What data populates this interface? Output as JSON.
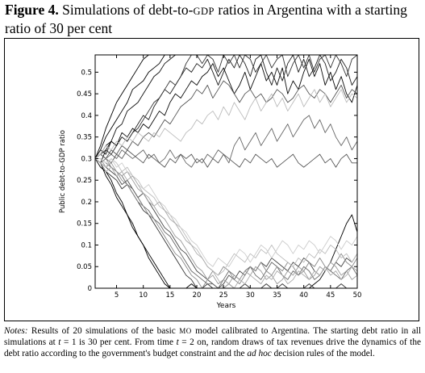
{
  "figure": {
    "label": "Figure 4.",
    "title_part1": " Simulations of debt-to-",
    "title_sc": "GDP",
    "title_part2": " ratios in Argentina with a starting ratio of 30 per cent"
  },
  "notes": {
    "label": "Notes:",
    "text1": " Results of 20 simulations of the basic ",
    "sc1": "MO",
    "text2": " model calibrated to Argentina. The starting debt ratio in all simulations at ",
    "t1": "t",
    "text3": " = 1 is 30 per cent. From time ",
    "t2": "t",
    "text4": " = 2 on, random draws of tax revenues drive the dynamics of the debt ratio according to the government's budget constraint and the ",
    "adhoc": "ad hoc",
    "text5": " decision rules of the model."
  },
  "chart_data": {
    "type": "line",
    "xlabel": "Years",
    "ylabel": "Public debt-to-GDP ratio",
    "xlim": [
      1,
      50
    ],
    "ylim": [
      0,
      0.54
    ],
    "xticks": [
      5,
      10,
      15,
      20,
      25,
      30,
      35,
      40,
      45,
      50
    ],
    "yticks": [
      0,
      0.05,
      0.1,
      0.15,
      0.2,
      0.25,
      0.3,
      0.35,
      0.4,
      0.45,
      0.5
    ],
    "grid": false,
    "legend": "none",
    "series": [
      {
        "color": "#000000",
        "values": [
          0.3,
          0.33,
          0.37,
          0.4,
          0.43,
          0.45,
          0.47,
          0.49,
          0.51,
          0.53,
          0.54,
          0.54,
          0.54,
          0.54,
          0.54,
          0.54,
          0.54,
          0.54,
          0.54,
          0.54,
          0.54,
          0.54,
          0.54,
          0.54,
          0.54,
          0.54,
          0.54,
          0.54,
          0.54,
          0.54,
          0.54,
          0.54,
          0.54,
          0.54,
          0.54,
          0.54,
          0.54,
          0.54,
          0.54,
          0.54,
          0.54,
          0.54,
          0.54,
          0.54,
          0.54,
          0.54,
          0.54,
          0.54,
          0.54,
          0.54
        ]
      },
      {
        "color": "#000000",
        "values": [
          0.3,
          0.32,
          0.35,
          0.37,
          0.39,
          0.41,
          0.43,
          0.46,
          0.47,
          0.48,
          0.5,
          0.51,
          0.52,
          0.54,
          0.54,
          0.54,
          0.54,
          0.54,
          0.54,
          0.54,
          0.54,
          0.54,
          0.54,
          0.54,
          0.54,
          0.54,
          0.54,
          0.54,
          0.54,
          0.54,
          0.54,
          0.54,
          0.54,
          0.54,
          0.54,
          0.54,
          0.54,
          0.54,
          0.54,
          0.54,
          0.54,
          0.54,
          0.54,
          0.54,
          0.54,
          0.54,
          0.54,
          0.54,
          0.54,
          0.54
        ]
      },
      {
        "color": "#111111",
        "values": [
          0.3,
          0.31,
          0.33,
          0.34,
          0.37,
          0.38,
          0.41,
          0.42,
          0.43,
          0.45,
          0.47,
          0.49,
          0.5,
          0.52,
          0.53,
          0.54,
          0.54,
          0.54,
          0.54,
          0.54,
          0.54,
          0.54,
          0.54,
          0.54,
          0.54,
          0.54,
          0.54,
          0.54,
          0.54,
          0.54,
          0.54,
          0.54,
          0.54,
          0.54,
          0.54,
          0.54,
          0.54,
          0.54,
          0.54,
          0.54,
          0.54,
          0.54,
          0.54,
          0.54,
          0.54,
          0.54,
          0.54,
          0.54,
          0.54,
          0.54
        ]
      },
      {
        "color": "#1e1e1e",
        "values": [
          0.3,
          0.32,
          0.31,
          0.34,
          0.33,
          0.35,
          0.34,
          0.36,
          0.38,
          0.4,
          0.39,
          0.42,
          0.44,
          0.46,
          0.45,
          0.47,
          0.49,
          0.51,
          0.5,
          0.52,
          0.51,
          0.53,
          0.5,
          0.47,
          0.5,
          0.53,
          0.51,
          0.54,
          0.52,
          0.49,
          0.53,
          0.54,
          0.5,
          0.47,
          0.51,
          0.48,
          0.52,
          0.54,
          0.5,
          0.53,
          0.49,
          0.51,
          0.54,
          0.52,
          0.48,
          0.5,
          0.53,
          0.51,
          0.47,
          0.49
        ]
      },
      {
        "color": "#333333",
        "values": [
          0.3,
          0.31,
          0.32,
          0.31,
          0.33,
          0.35,
          0.34,
          0.36,
          0.37,
          0.39,
          0.41,
          0.43,
          0.44,
          0.46,
          0.48,
          0.47,
          0.49,
          0.52,
          0.54,
          0.54,
          0.52,
          0.54,
          0.53,
          0.5,
          0.54,
          0.52,
          0.54,
          0.51,
          0.54,
          0.53,
          0.5,
          0.52,
          0.54,
          0.51,
          0.53,
          0.54,
          0.49,
          0.52,
          0.54,
          0.51,
          0.54,
          0.5,
          0.53,
          0.54,
          0.51,
          0.54,
          0.52,
          0.49,
          0.53,
          0.54
        ]
      },
      {
        "color": "#0a0a0a",
        "values": [
          0.3,
          0.29,
          0.32,
          0.34,
          0.33,
          0.36,
          0.35,
          0.37,
          0.36,
          0.38,
          0.37,
          0.39,
          0.41,
          0.4,
          0.43,
          0.45,
          0.44,
          0.46,
          0.48,
          0.47,
          0.49,
          0.5,
          0.52,
          0.49,
          0.51,
          0.48,
          0.45,
          0.47,
          0.5,
          0.46,
          0.49,
          0.52,
          0.48,
          0.5,
          0.47,
          0.51,
          0.45,
          0.48,
          0.46,
          0.5,
          0.53,
          0.49,
          0.52,
          0.47,
          0.5,
          0.46,
          0.49,
          0.45,
          0.43,
          0.47
        ]
      },
      {
        "color": "#555555",
        "values": [
          0.3,
          0.31,
          0.3,
          0.32,
          0.31,
          0.33,
          0.32,
          0.34,
          0.33,
          0.35,
          0.36,
          0.35,
          0.37,
          0.39,
          0.38,
          0.4,
          0.42,
          0.43,
          0.44,
          0.46,
          0.45,
          0.47,
          0.44,
          0.46,
          0.48,
          0.47,
          0.45,
          0.43,
          0.45,
          0.46,
          0.44,
          0.45,
          0.43,
          0.44,
          0.46,
          0.45,
          0.43,
          0.44,
          0.46,
          0.47,
          0.45,
          0.44,
          0.46,
          0.45,
          0.43,
          0.45,
          0.47,
          0.44,
          0.46,
          0.45
        ]
      },
      {
        "color": "#666666",
        "values": [
          0.3,
          0.29,
          0.3,
          0.31,
          0.3,
          0.32,
          0.31,
          0.3,
          0.31,
          0.32,
          0.3,
          0.31,
          0.29,
          0.3,
          0.32,
          0.3,
          0.31,
          0.29,
          0.28,
          0.3,
          0.29,
          0.31,
          0.3,
          0.32,
          0.31,
          0.29,
          0.33,
          0.35,
          0.32,
          0.34,
          0.36,
          0.33,
          0.35,
          0.37,
          0.34,
          0.36,
          0.38,
          0.35,
          0.37,
          0.39,
          0.4,
          0.37,
          0.39,
          0.36,
          0.38,
          0.35,
          0.33,
          0.35,
          0.32,
          0.34
        ]
      },
      {
        "color": "#555555",
        "values": [
          0.3,
          0.31,
          0.3,
          0.29,
          0.31,
          0.3,
          0.32,
          0.31,
          0.3,
          0.29,
          0.31,
          0.3,
          0.29,
          0.28,
          0.3,
          0.29,
          0.31,
          0.3,
          0.31,
          0.29,
          0.3,
          0.28,
          0.3,
          0.29,
          0.31,
          0.3,
          0.29,
          0.28,
          0.3,
          0.29,
          0.31,
          0.3,
          0.29,
          0.3,
          0.28,
          0.29,
          0.3,
          0.31,
          0.29,
          0.28,
          0.29,
          0.3,
          0.31,
          0.29,
          0.3,
          0.28,
          0.3,
          0.31,
          0.29,
          0.29
        ]
      },
      {
        "color": "#bbbbbb",
        "values": [
          0.3,
          0.31,
          0.33,
          0.32,
          0.34,
          0.33,
          0.35,
          0.34,
          0.36,
          0.35,
          0.34,
          0.36,
          0.35,
          0.37,
          0.36,
          0.35,
          0.34,
          0.36,
          0.37,
          0.39,
          0.38,
          0.4,
          0.41,
          0.39,
          0.42,
          0.4,
          0.43,
          0.41,
          0.39,
          0.42,
          0.44,
          0.41,
          0.43,
          0.45,
          0.42,
          0.44,
          0.41,
          0.43,
          0.45,
          0.42,
          0.44,
          0.46,
          0.43,
          0.45,
          0.42,
          0.44,
          0.46,
          0.43,
          0.45,
          0.44
        ]
      },
      {
        "color": "#000000",
        "values": [
          0.3,
          0.29,
          0.26,
          0.24,
          0.21,
          0.19,
          0.17,
          0.14,
          0.12,
          0.1,
          0.08,
          0.06,
          0.04,
          0.02,
          0.0,
          0.0,
          0.0,
          0.0,
          0.0,
          0.0,
          0.0,
          0.0,
          0.0,
          0.0,
          0.0,
          0.0,
          0.0,
          0.0,
          0.0,
          0.0,
          0.0,
          0.0,
          0.0,
          0.0,
          0.0,
          0.0,
          0.0,
          0.0,
          0.0,
          0.0,
          0.0,
          0.0,
          0.0,
          0.0,
          0.0,
          0.0,
          0.0,
          0.0,
          0.0,
          0.0
        ]
      },
      {
        "color": "#000000",
        "values": [
          0.3,
          0.28,
          0.27,
          0.25,
          0.22,
          0.2,
          0.17,
          0.15,
          0.12,
          0.1,
          0.07,
          0.05,
          0.03,
          0.01,
          0.0,
          0.0,
          0.0,
          0.0,
          0.01,
          0.0,
          0.0,
          0.0,
          0.0,
          0.0,
          0.0,
          0.0,
          0.0,
          0.0,
          0.0,
          0.0,
          0.0,
          0.0,
          0.0,
          0.0,
          0.0,
          0.0,
          0.0,
          0.0,
          0.0,
          0.0,
          0.0,
          0.01,
          0.02,
          0.04,
          0.06,
          0.09,
          0.12,
          0.15,
          0.17,
          0.13
        ]
      },
      {
        "color": "#333333",
        "values": [
          0.3,
          0.29,
          0.27,
          0.26,
          0.25,
          0.23,
          0.24,
          0.22,
          0.2,
          0.18,
          0.17,
          0.15,
          0.13,
          0.11,
          0.09,
          0.07,
          0.05,
          0.03,
          0.02,
          0.0,
          0.0,
          0.01,
          0.0,
          0.0,
          0.0,
          0.01,
          0.0,
          0.0,
          0.01,
          0.0,
          0.0,
          0.0,
          0.01,
          0.0,
          0.0,
          0.01,
          0.0,
          0.0,
          0.0,
          0.0,
          0.01,
          0.0,
          0.0,
          0.0,
          0.0,
          0.0,
          0.01,
          0.0,
          0.0,
          0.0
        ]
      },
      {
        "color": "#444444",
        "values": [
          0.3,
          0.29,
          0.28,
          0.27,
          0.26,
          0.24,
          0.25,
          0.23,
          0.21,
          0.22,
          0.2,
          0.18,
          0.16,
          0.14,
          0.13,
          0.11,
          0.09,
          0.08,
          0.06,
          0.04,
          0.03,
          0.02,
          0.01,
          0.0,
          0.01,
          0.03,
          0.02,
          0.04,
          0.03,
          0.05,
          0.04,
          0.06,
          0.05,
          0.07,
          0.06,
          0.05,
          0.04,
          0.06,
          0.05,
          0.07,
          0.06,
          0.04,
          0.03,
          0.05,
          0.04,
          0.06,
          0.05,
          0.07,
          0.06,
          0.08
        ]
      },
      {
        "color": "#666666",
        "values": [
          0.3,
          0.3,
          0.29,
          0.28,
          0.27,
          0.26,
          0.24,
          0.23,
          0.21,
          0.19,
          0.18,
          0.16,
          0.15,
          0.13,
          0.12,
          0.1,
          0.08,
          0.06,
          0.04,
          0.03,
          0.02,
          0.01,
          0.01,
          0.0,
          0.02,
          0.04,
          0.03,
          0.02,
          0.04,
          0.05,
          0.03,
          0.02,
          0.04,
          0.06,
          0.05,
          0.03,
          0.02,
          0.04,
          0.03,
          0.05,
          0.04,
          0.02,
          0.03,
          0.05,
          0.04,
          0.03,
          0.02,
          0.04,
          0.05,
          0.03
        ]
      },
      {
        "color": "#888888",
        "values": [
          0.3,
          0.29,
          0.3,
          0.28,
          0.27,
          0.25,
          0.24,
          0.22,
          0.2,
          0.19,
          0.17,
          0.16,
          0.14,
          0.12,
          0.1,
          0.08,
          0.07,
          0.05,
          0.03,
          0.02,
          0.0,
          0.02,
          0.04,
          0.03,
          0.05,
          0.04,
          0.02,
          0.01,
          0.03,
          0.05,
          0.04,
          0.06,
          0.04,
          0.03,
          0.05,
          0.04,
          0.06,
          0.05,
          0.03,
          0.04,
          0.06,
          0.05,
          0.07,
          0.05,
          0.04,
          0.06,
          0.08,
          0.06,
          0.05,
          0.07
        ]
      },
      {
        "color": "#999999",
        "values": [
          0.3,
          0.3,
          0.28,
          0.29,
          0.27,
          0.26,
          0.27,
          0.25,
          0.23,
          0.22,
          0.2,
          0.19,
          0.17,
          0.16,
          0.14,
          0.12,
          0.11,
          0.09,
          0.07,
          0.05,
          0.04,
          0.02,
          0.03,
          0.01,
          0.02,
          0.01,
          0.03,
          0.02,
          0.04,
          0.03,
          0.05,
          0.04,
          0.02,
          0.03,
          0.01,
          0.02,
          0.04,
          0.03,
          0.05,
          0.04,
          0.02,
          0.03,
          0.05,
          0.04,
          0.06,
          0.05,
          0.03,
          0.04,
          0.02,
          0.03
        ]
      },
      {
        "color": "#bbbbbb",
        "values": [
          0.3,
          0.29,
          0.28,
          0.3,
          0.29,
          0.27,
          0.28,
          0.26,
          0.25,
          0.23,
          0.22,
          0.21,
          0.19,
          0.18,
          0.17,
          0.15,
          0.14,
          0.12,
          0.1,
          0.09,
          0.07,
          0.05,
          0.04,
          0.03,
          0.04,
          0.06,
          0.08,
          0.07,
          0.06,
          0.08,
          0.07,
          0.09,
          0.08,
          0.1,
          0.08,
          0.07,
          0.06,
          0.05,
          0.07,
          0.06,
          0.08,
          0.07,
          0.09,
          0.08,
          0.1,
          0.09,
          0.07,
          0.08,
          0.06,
          0.08
        ]
      },
      {
        "color": "#cccccc",
        "values": [
          0.3,
          0.3,
          0.29,
          0.3,
          0.28,
          0.29,
          0.27,
          0.26,
          0.24,
          0.23,
          0.24,
          0.22,
          0.2,
          0.19,
          0.17,
          0.16,
          0.14,
          0.13,
          0.11,
          0.1,
          0.08,
          0.06,
          0.05,
          0.07,
          0.06,
          0.05,
          0.07,
          0.09,
          0.08,
          0.06,
          0.08,
          0.1,
          0.09,
          0.07,
          0.09,
          0.11,
          0.1,
          0.08,
          0.1,
          0.09,
          0.11,
          0.1,
          0.08,
          0.1,
          0.12,
          0.11,
          0.09,
          0.11,
          0.1,
          0.12
        ]
      },
      {
        "color": "#aaaaaa",
        "values": [
          0.3,
          0.29,
          0.27,
          0.28,
          0.26,
          0.27,
          0.25,
          0.26,
          0.24,
          0.22,
          0.21,
          0.19,
          0.2,
          0.18,
          0.16,
          0.15,
          0.13,
          0.11,
          0.1,
          0.08,
          0.07,
          0.05,
          0.04,
          0.02,
          0.0,
          0.01,
          0.0,
          0.02,
          0.01,
          0.03,
          0.02,
          0.01,
          0.03,
          0.02,
          0.04,
          0.03,
          0.01,
          0.02,
          0.04,
          0.03,
          0.02,
          0.04,
          0.03,
          0.05,
          0.03,
          0.04,
          0.02,
          0.03,
          0.05,
          0.04
        ]
      }
    ]
  }
}
